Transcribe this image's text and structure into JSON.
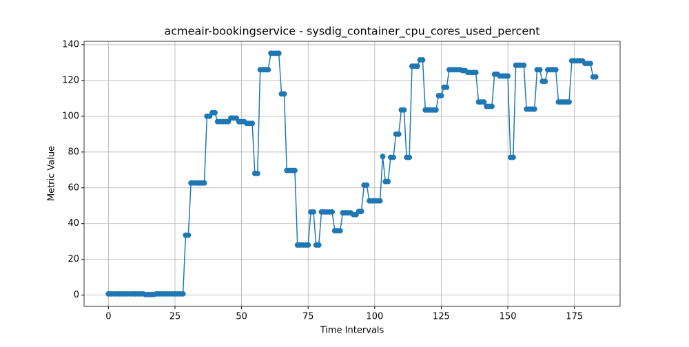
{
  "chart_data": {
    "type": "line",
    "title": "acmeair-bookingservice - sysdig_container_cpu_cores_used_percent",
    "xlabel": "Time Intervals",
    "ylabel": "Metric Value",
    "x": [
      0,
      1,
      2,
      3,
      4,
      5,
      6,
      7,
      8,
      9,
      10,
      11,
      12,
      13,
      14,
      15,
      16,
      17,
      18,
      19,
      20,
      21,
      22,
      23,
      24,
      25,
      26,
      27,
      28,
      29,
      30,
      31,
      32,
      33,
      34,
      35,
      36,
      37,
      38,
      39,
      40,
      41,
      42,
      43,
      44,
      45,
      46,
      47,
      48,
      49,
      50,
      51,
      52,
      53,
      54,
      55,
      56,
      57,
      58,
      59,
      60,
      61,
      62,
      63,
      64,
      65,
      66,
      67,
      68,
      69,
      70,
      71,
      72,
      73,
      74,
      75,
      76,
      77,
      78,
      79,
      80,
      81,
      82,
      83,
      84,
      85,
      86,
      87,
      88,
      89,
      90,
      91,
      92,
      93,
      94,
      95,
      96,
      97,
      98,
      99,
      100,
      101,
      102,
      103,
      104,
      105,
      106,
      107,
      108,
      109,
      110,
      111,
      112,
      113,
      114,
      115,
      116,
      117,
      118,
      119,
      120,
      121,
      122,
      123,
      124,
      125,
      126,
      127,
      128,
      129,
      130,
      131,
      132,
      133,
      134,
      135,
      136,
      137,
      138,
      139,
      140,
      141,
      142,
      143,
      144,
      145,
      146,
      147,
      148,
      149,
      150,
      151,
      152,
      153,
      154,
      155,
      156,
      157,
      158,
      159,
      160,
      161,
      162,
      163,
      164,
      165,
      166,
      167,
      168,
      169,
      170,
      171,
      172,
      173,
      174,
      175,
      176,
      177,
      178,
      179,
      180,
      181,
      182,
      183
    ],
    "series": [
      {
        "color": "#1f77b4",
        "values": [
          0.7,
          0.7,
          0.7,
          0.7,
          0.7,
          0.7,
          0.7,
          0.7,
          0.7,
          0.7,
          0.7,
          0.7,
          0.7,
          0.7,
          0.3,
          0.3,
          0.3,
          0.3,
          0.7,
          0.7,
          0.7,
          0.7,
          0.7,
          0.7,
          0.7,
          0.7,
          0.7,
          0.7,
          0.7,
          33.5,
          33.5,
          62.7,
          62.7,
          62.7,
          62.7,
          62.7,
          62.7,
          100,
          100,
          102,
          102,
          97,
          97,
          97,
          97,
          97,
          99,
          99,
          99,
          97,
          97,
          97,
          96,
          96,
          96,
          68,
          68,
          126,
          126,
          126,
          126,
          135.2,
          135.2,
          135.2,
          135.2,
          112.5,
          112.5,
          69.7,
          69.7,
          69.7,
          69.7,
          28,
          28,
          28,
          28,
          28,
          46.5,
          46.5,
          28,
          28,
          46.5,
          46.5,
          46.5,
          46.5,
          46.5,
          36,
          36,
          36,
          46,
          46,
          46,
          46,
          45,
          45,
          46.8,
          46.8,
          61.5,
          61.5,
          52.7,
          52.7,
          52.7,
          52.7,
          52.7,
          77.5,
          63.5,
          63.5,
          77,
          77,
          90,
          90,
          103.5,
          103.5,
          77,
          77,
          128,
          128,
          128,
          131.5,
          131.5,
          103.5,
          103.5,
          103.5,
          103.5,
          103.5,
          111.5,
          111.5,
          116.2,
          116.2,
          126,
          126,
          126,
          126,
          126,
          125.5,
          125.5,
          124.5,
          124.5,
          124.5,
          124.5,
          108,
          108,
          108,
          105.5,
          105.5,
          105.5,
          123.5,
          123.5,
          122.5,
          122.5,
          122.5,
          122.5,
          77,
          77,
          128.5,
          128.5,
          128.5,
          128.5,
          104,
          104,
          104,
          104,
          126,
          126,
          119.5,
          119.5,
          126,
          126,
          126,
          126,
          108,
          108,
          108,
          108,
          108,
          131,
          131,
          131,
          131,
          131,
          129.5,
          129.5,
          129.5,
          122,
          122
        ]
      }
    ],
    "xlim": [
      -9.15,
      192.15
    ],
    "xticks": [
      0,
      25,
      50,
      75,
      100,
      125,
      150,
      175
    ],
    "ylim": [
      -6.3,
      141.9
    ],
    "yticks": [
      0,
      20,
      40,
      60,
      80,
      100,
      120,
      140
    ],
    "grid": true,
    "markers": true
  }
}
